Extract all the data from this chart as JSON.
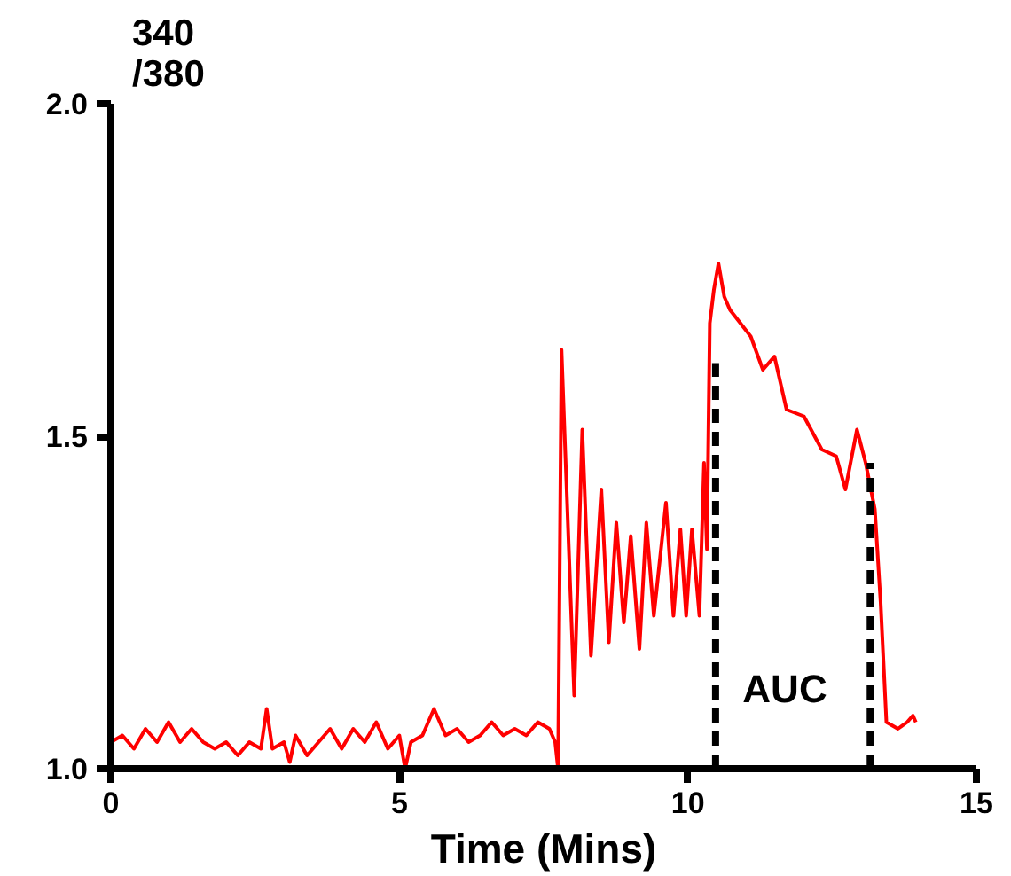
{
  "chart_data": {
    "type": "line",
    "xlabel": "Time (Mins)",
    "ylabel": "340\n/380",
    "xlim": [
      0,
      15
    ],
    "ylim": [
      1.0,
      2.0
    ],
    "xticks": [
      0,
      5,
      10,
      15
    ],
    "yticks": [
      {
        "value": 1.0,
        "label": "1.0"
      },
      {
        "value": 1.5,
        "label": "1.5"
      },
      {
        "value": 2.0,
        "label": "2.0"
      }
    ],
    "grid": false,
    "marker": "none",
    "annotations": [
      "AUC"
    ],
    "series": [
      {
        "color": "#ff0000",
        "line_style": "solid",
        "x": [
          0,
          0.2,
          0.4,
          0.6,
          0.8,
          1.0,
          1.2,
          1.4,
          1.6,
          1.8,
          2.0,
          2.2,
          2.4,
          2.6,
          2.7,
          2.8,
          3.0,
          3.1,
          3.2,
          3.4,
          3.6,
          3.8,
          4.0,
          4.2,
          4.4,
          4.6,
          4.8,
          5.0,
          5.1,
          5.2,
          5.4,
          5.6,
          5.8,
          6.0,
          6.2,
          6.4,
          6.6,
          6.8,
          7.0,
          7.2,
          7.4,
          7.6,
          7.7,
          7.75,
          7.81,
          8.03,
          8.17,
          8.32,
          8.5,
          8.63,
          8.76,
          8.89,
          9.01,
          9.16,
          9.28,
          9.41,
          9.62,
          9.75,
          9.87,
          9.97,
          10.07,
          10.2,
          10.28,
          10.33,
          10.38,
          10.45,
          10.53,
          10.63,
          10.73,
          11.09,
          11.3,
          11.5,
          11.71,
          12.01,
          12.32,
          12.57,
          12.73,
          12.93,
          13.08,
          13.24,
          13.34,
          13.44,
          13.64,
          13.8,
          13.9,
          13.95
        ],
        "values": [
          1.04,
          1.05,
          1.03,
          1.06,
          1.04,
          1.07,
          1.04,
          1.06,
          1.04,
          1.03,
          1.04,
          1.02,
          1.04,
          1.03,
          1.09,
          1.03,
          1.04,
          1.01,
          1.05,
          1.02,
          1.04,
          1.06,
          1.03,
          1.06,
          1.04,
          1.07,
          1.03,
          1.05,
          1.0,
          1.04,
          1.05,
          1.09,
          1.05,
          1.06,
          1.04,
          1.05,
          1.07,
          1.05,
          1.06,
          1.05,
          1.07,
          1.06,
          1.04,
          1.0,
          1.63,
          1.11,
          1.51,
          1.17,
          1.42,
          1.19,
          1.37,
          1.22,
          1.35,
          1.18,
          1.37,
          1.23,
          1.4,
          1.23,
          1.36,
          1.23,
          1.36,
          1.23,
          1.46,
          1.33,
          1.67,
          1.72,
          1.76,
          1.71,
          1.69,
          1.65,
          1.6,
          1.62,
          1.54,
          1.53,
          1.48,
          1.47,
          1.42,
          1.51,
          1.46,
          1.39,
          1.25,
          1.07,
          1.06,
          1.07,
          1.08,
          1.07
        ]
      },
      {
        "color": "#000000",
        "line_style": "dashed",
        "x": [
          10.48,
          10.48
        ],
        "values": [
          1.0,
          1.61
        ]
      },
      {
        "color": "#000000",
        "line_style": "dashed",
        "x": [
          13.16,
          13.16
        ],
        "values": [
          1.0,
          1.46
        ]
      }
    ]
  }
}
